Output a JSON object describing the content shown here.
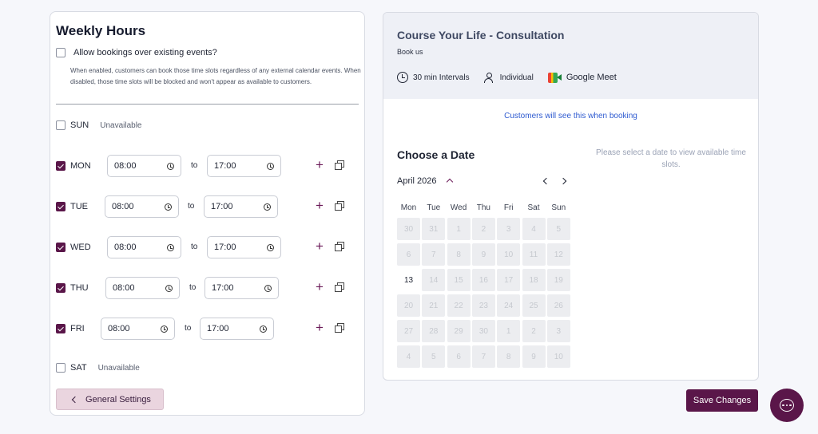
{
  "weekly": {
    "title": "Weekly Hours",
    "allow_label": "Allow bookings over existing events?",
    "allow_checked": false,
    "allow_desc": "When enabled, customers can book those time slots regardless of any external calendar events. When disabled, those time slots will be blocked and won't appear as available to customers.",
    "to_label": "to",
    "unavailable_label": "Unavailable",
    "days": [
      {
        "name": "SUN",
        "checked": false
      },
      {
        "name": "MON",
        "checked": true,
        "start": "08:00",
        "end": "17:00"
      },
      {
        "name": "TUE",
        "checked": true,
        "start": "08:00",
        "end": "17:00"
      },
      {
        "name": "WED",
        "checked": true,
        "start": "08:00",
        "end": "17:00"
      },
      {
        "name": "THU",
        "checked": true,
        "start": "08:00",
        "end": "17:00"
      },
      {
        "name": "FRI",
        "checked": true,
        "start": "08:00",
        "end": "17:00"
      },
      {
        "name": "SAT",
        "checked": false
      }
    ],
    "general_settings": "General Settings"
  },
  "preview": {
    "course_title": "Course Your Life - Consultation",
    "book_us": "Book us",
    "interval": "30 min",
    "interval_suffix": "Intervals",
    "type": "Individual",
    "meeting": "Google Meet",
    "customers_note": "Customers will see this when booking",
    "choose_date": "Choose a Date",
    "no_date_msg": "Please select a date to view available time slots.",
    "month_label": "April 2026",
    "weekdays": [
      "Mon",
      "Tue",
      "Wed",
      "Thu",
      "Fri",
      "Sat",
      "Sun"
    ],
    "calendar": [
      [
        "30",
        "31",
        "1",
        "2",
        "3",
        "4",
        "5"
      ],
      [
        "6",
        "7",
        "8",
        "9",
        "10",
        "11",
        "12"
      ],
      [
        "13",
        "14",
        "15",
        "16",
        "17",
        "18",
        "19"
      ],
      [
        "20",
        "21",
        "22",
        "23",
        "24",
        "25",
        "26"
      ],
      [
        "27",
        "28",
        "29",
        "30",
        "1",
        "2",
        "3"
      ],
      [
        "4",
        "5",
        "6",
        "7",
        "8",
        "9",
        "10"
      ]
    ],
    "available_dates": [
      "13"
    ]
  },
  "save_label": "Save Changes",
  "colors": {
    "accent": "#5a1649",
    "link": "#2f5bd0"
  }
}
